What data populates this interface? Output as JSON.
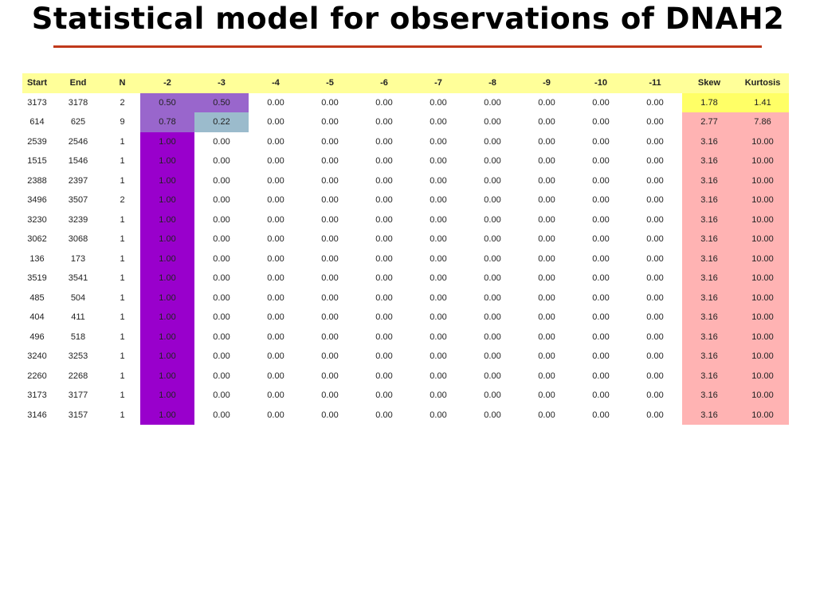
{
  "slide": {
    "title": "Statistical model for observations of DNAH2"
  },
  "table": {
    "columns": [
      "Start",
      "End",
      "N",
      "-2",
      "-3",
      "-4",
      "-5",
      "-6",
      "-7",
      "-8",
      "-9",
      "-10",
      "-11",
      "Skew",
      "Kurtosis"
    ],
    "rows": [
      [
        "3173",
        "3178",
        "2",
        "0.50",
        "0.50",
        "0.00",
        "0.00",
        "0.00",
        "0.00",
        "0.00",
        "0.00",
        "0.00",
        "0.00",
        "1.78",
        "1.41"
      ],
      [
        "614",
        "625",
        "9",
        "0.78",
        "0.22",
        "0.00",
        "0.00",
        "0.00",
        "0.00",
        "0.00",
        "0.00",
        "0.00",
        "0.00",
        "2.77",
        "7.86"
      ],
      [
        "2539",
        "2546",
        "1",
        "1.00",
        "0.00",
        "0.00",
        "0.00",
        "0.00",
        "0.00",
        "0.00",
        "0.00",
        "0.00",
        "0.00",
        "3.16",
        "10.00"
      ],
      [
        "1515",
        "1546",
        "1",
        "1.00",
        "0.00",
        "0.00",
        "0.00",
        "0.00",
        "0.00",
        "0.00",
        "0.00",
        "0.00",
        "0.00",
        "3.16",
        "10.00"
      ],
      [
        "2388",
        "2397",
        "1",
        "1.00",
        "0.00",
        "0.00",
        "0.00",
        "0.00",
        "0.00",
        "0.00",
        "0.00",
        "0.00",
        "0.00",
        "3.16",
        "10.00"
      ],
      [
        "3496",
        "3507",
        "2",
        "1.00",
        "0.00",
        "0.00",
        "0.00",
        "0.00",
        "0.00",
        "0.00",
        "0.00",
        "0.00",
        "0.00",
        "3.16",
        "10.00"
      ],
      [
        "3230",
        "3239",
        "1",
        "1.00",
        "0.00",
        "0.00",
        "0.00",
        "0.00",
        "0.00",
        "0.00",
        "0.00",
        "0.00",
        "0.00",
        "3.16",
        "10.00"
      ],
      [
        "3062",
        "3068",
        "1",
        "1.00",
        "0.00",
        "0.00",
        "0.00",
        "0.00",
        "0.00",
        "0.00",
        "0.00",
        "0.00",
        "0.00",
        "3.16",
        "10.00"
      ],
      [
        "136",
        "173",
        "1",
        "1.00",
        "0.00",
        "0.00",
        "0.00",
        "0.00",
        "0.00",
        "0.00",
        "0.00",
        "0.00",
        "0.00",
        "3.16",
        "10.00"
      ],
      [
        "3519",
        "3541",
        "1",
        "1.00",
        "0.00",
        "0.00",
        "0.00",
        "0.00",
        "0.00",
        "0.00",
        "0.00",
        "0.00",
        "0.00",
        "3.16",
        "10.00"
      ],
      [
        "485",
        "504",
        "1",
        "1.00",
        "0.00",
        "0.00",
        "0.00",
        "0.00",
        "0.00",
        "0.00",
        "0.00",
        "0.00",
        "0.00",
        "3.16",
        "10.00"
      ],
      [
        "404",
        "411",
        "1",
        "1.00",
        "0.00",
        "0.00",
        "0.00",
        "0.00",
        "0.00",
        "0.00",
        "0.00",
        "0.00",
        "0.00",
        "3.16",
        "10.00"
      ],
      [
        "496",
        "518",
        "1",
        "1.00",
        "0.00",
        "0.00",
        "0.00",
        "0.00",
        "0.00",
        "0.00",
        "0.00",
        "0.00",
        "0.00",
        "3.16",
        "10.00"
      ],
      [
        "3240",
        "3253",
        "1",
        "1.00",
        "0.00",
        "0.00",
        "0.00",
        "0.00",
        "0.00",
        "0.00",
        "0.00",
        "0.00",
        "0.00",
        "3.16",
        "10.00"
      ],
      [
        "2260",
        "2268",
        "1",
        "1.00",
        "0.00",
        "0.00",
        "0.00",
        "0.00",
        "0.00",
        "0.00",
        "0.00",
        "0.00",
        "0.00",
        "3.16",
        "10.00"
      ],
      [
        "3173",
        "3177",
        "1",
        "1.00",
        "0.00",
        "0.00",
        "0.00",
        "0.00",
        "0.00",
        "0.00",
        "0.00",
        "0.00",
        "0.00",
        "3.16",
        "10.00"
      ],
      [
        "3146",
        "3157",
        "1",
        "1.00",
        "0.00",
        "0.00",
        "0.00",
        "0.00",
        "0.00",
        "0.00",
        "0.00",
        "0.00",
        "0.00",
        "3.16",
        "10.00"
      ]
    ],
    "highlight_colors": {
      "header": "#ffff99",
      "purple": "#9966cc",
      "violet": "#9900cc",
      "grayblue": "#9bbbcc",
      "yellow": "#ffff66",
      "pink": "#ffb3b3",
      "title_rule": "#c0391b"
    }
  }
}
